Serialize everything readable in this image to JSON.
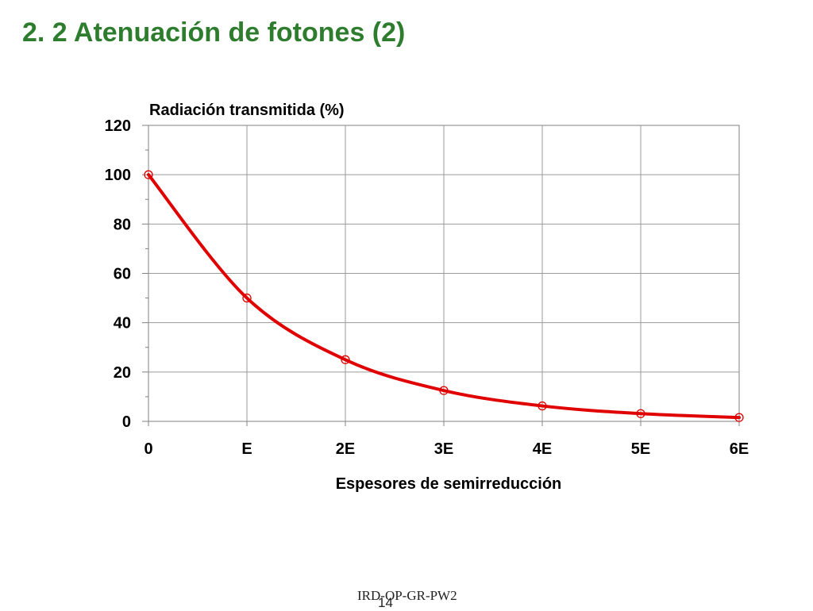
{
  "slide": {
    "title": "2. 2 Atenuación de fotones (2)",
    "footer_code": "IRD-OP-GR-PW2",
    "page_number": "14"
  },
  "chart_data": {
    "type": "line",
    "title": "Radiación transmitida (%)",
    "xlabel": "Espesores de semirreducción",
    "ylabel": "Radiación transmitida (%)",
    "categories": [
      "0",
      "E",
      "2E",
      "3E",
      "4E",
      "5E",
      "6E"
    ],
    "series": [
      {
        "values": [
          100,
          50,
          25,
          12.5,
          6.25,
          3.125,
          1.5625
        ]
      }
    ],
    "ylim": [
      0,
      120
    ],
    "yticks": [
      "0",
      "20",
      "40",
      "60",
      "80",
      "100",
      "120"
    ],
    "grid": true,
    "line_color": "#e00000",
    "marker": "open-circle",
    "legend": "none"
  }
}
